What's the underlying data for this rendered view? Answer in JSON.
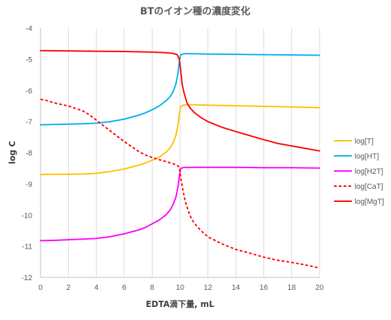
{
  "chart_data": {
    "type": "line",
    "title": "BTのイオン種の濃度変化",
    "xlabel": "EDTA滴下量, mL",
    "ylabel": "log C",
    "xlim": [
      0,
      20
    ],
    "ylim": [
      -12,
      -4
    ],
    "xticks": [
      0,
      2,
      4,
      6,
      8,
      10,
      12,
      14,
      16,
      18,
      20
    ],
    "yticks": [
      -12,
      -11,
      -10,
      -9,
      -8,
      -7,
      -6,
      -5,
      -4
    ],
    "grid": "vertical",
    "legend_position": "right",
    "series": [
      {
        "name": "log[T]",
        "color": "#FFC000",
        "dash": "solid",
        "points": [
          [
            0,
            -8.7
          ],
          [
            1,
            -8.69
          ],
          [
            2,
            -8.69
          ],
          [
            3,
            -8.68
          ],
          [
            4,
            -8.66
          ],
          [
            5,
            -8.6
          ],
          [
            6,
            -8.52
          ],
          [
            7,
            -8.4
          ],
          [
            7.5,
            -8.33
          ],
          [
            8,
            -8.24
          ],
          [
            8.5,
            -8.14
          ],
          [
            9,
            -7.98
          ],
          [
            9.3,
            -7.84
          ],
          [
            9.5,
            -7.68
          ],
          [
            9.7,
            -7.45
          ],
          [
            9.85,
            -7.1
          ],
          [
            9.95,
            -6.75
          ],
          [
            10.05,
            -6.52
          ],
          [
            10.3,
            -6.46
          ],
          [
            11,
            -6.46
          ],
          [
            12,
            -6.47
          ],
          [
            14,
            -6.49
          ],
          [
            16,
            -6.51
          ],
          [
            18,
            -6.53
          ],
          [
            20,
            -6.55
          ]
        ]
      },
      {
        "name": "log[HT]",
        "color": "#00B0F0",
        "dash": "solid",
        "points": [
          [
            0,
            -7.1
          ],
          [
            1,
            -7.09
          ],
          [
            2,
            -7.08
          ],
          [
            3,
            -7.07
          ],
          [
            4,
            -7.05
          ],
          [
            5,
            -7.0
          ],
          [
            6,
            -6.92
          ],
          [
            7,
            -6.8
          ],
          [
            7.5,
            -6.72
          ],
          [
            8,
            -6.62
          ],
          [
            8.5,
            -6.5
          ],
          [
            9,
            -6.33
          ],
          [
            9.3,
            -6.19
          ],
          [
            9.5,
            -6.04
          ],
          [
            9.7,
            -5.8
          ],
          [
            9.85,
            -5.45
          ],
          [
            9.95,
            -5.05
          ],
          [
            10.05,
            -4.85
          ],
          [
            10.3,
            -4.82
          ],
          [
            11,
            -4.82
          ],
          [
            12,
            -4.83
          ],
          [
            14,
            -4.84
          ],
          [
            16,
            -4.85
          ],
          [
            18,
            -4.86
          ],
          [
            20,
            -4.87
          ]
        ]
      },
      {
        "name": "log[H2T]",
        "color": "#FF00FF",
        "dash": "solid",
        "points": [
          [
            0,
            -10.82
          ],
          [
            1,
            -10.81
          ],
          [
            2,
            -10.79
          ],
          [
            3,
            -10.77
          ],
          [
            4,
            -10.75
          ],
          [
            5,
            -10.69
          ],
          [
            6,
            -10.6
          ],
          [
            7,
            -10.48
          ],
          [
            7.5,
            -10.4
          ],
          [
            8,
            -10.28
          ],
          [
            8.5,
            -10.16
          ],
          [
            9,
            -9.99
          ],
          [
            9.3,
            -9.83
          ],
          [
            9.5,
            -9.66
          ],
          [
            9.7,
            -9.43
          ],
          [
            9.85,
            -9.1
          ],
          [
            9.95,
            -8.75
          ],
          [
            10.05,
            -8.5
          ],
          [
            10.3,
            -8.47
          ],
          [
            11,
            -8.47
          ],
          [
            12,
            -8.47
          ],
          [
            14,
            -8.47
          ],
          [
            16,
            -8.48
          ],
          [
            18,
            -8.48
          ],
          [
            20,
            -8.49
          ]
        ]
      },
      {
        "name": "log[CaT]",
        "color": "#FF0000",
        "dash": "dashed",
        "points": [
          [
            0,
            -6.28
          ],
          [
            0.5,
            -6.33
          ],
          [
            1,
            -6.4
          ],
          [
            2,
            -6.5
          ],
          [
            3,
            -6.65
          ],
          [
            3.5,
            -6.78
          ],
          [
            4,
            -6.95
          ],
          [
            5,
            -7.3
          ],
          [
            6,
            -7.64
          ],
          [
            7,
            -7.95
          ],
          [
            7.5,
            -8.07
          ],
          [
            8,
            -8.15
          ],
          [
            8.5,
            -8.22
          ],
          [
            9,
            -8.28
          ],
          [
            9.5,
            -8.35
          ],
          [
            9.8,
            -8.4
          ],
          [
            9.95,
            -8.47
          ],
          [
            10.05,
            -8.8
          ],
          [
            10.2,
            -9.2
          ],
          [
            10.4,
            -9.6
          ],
          [
            10.7,
            -10.0
          ],
          [
            11,
            -10.25
          ],
          [
            11.5,
            -10.5
          ],
          [
            12,
            -10.7
          ],
          [
            13,
            -10.92
          ],
          [
            14,
            -11.1
          ],
          [
            15,
            -11.22
          ],
          [
            16,
            -11.35
          ],
          [
            17,
            -11.45
          ],
          [
            18,
            -11.52
          ],
          [
            19,
            -11.6
          ],
          [
            20,
            -11.7
          ]
        ]
      },
      {
        "name": "log[MgT]",
        "color": "#FF0000",
        "dash": "solid",
        "points": [
          [
            0,
            -4.72
          ],
          [
            2,
            -4.73
          ],
          [
            4,
            -4.74
          ],
          [
            6,
            -4.75
          ],
          [
            8,
            -4.77
          ],
          [
            9,
            -4.79
          ],
          [
            9.5,
            -4.81
          ],
          [
            9.8,
            -4.85
          ],
          [
            9.95,
            -5.0
          ],
          [
            10.05,
            -5.35
          ],
          [
            10.15,
            -5.8
          ],
          [
            10.3,
            -6.1
          ],
          [
            10.5,
            -6.4
          ],
          [
            10.7,
            -6.55
          ],
          [
            11,
            -6.7
          ],
          [
            11.5,
            -6.87
          ],
          [
            12,
            -7.0
          ],
          [
            13,
            -7.18
          ],
          [
            14,
            -7.32
          ],
          [
            15,
            -7.45
          ],
          [
            16,
            -7.58
          ],
          [
            17,
            -7.7
          ],
          [
            18,
            -7.78
          ],
          [
            19,
            -7.86
          ],
          [
            20,
            -7.94
          ]
        ]
      }
    ]
  }
}
